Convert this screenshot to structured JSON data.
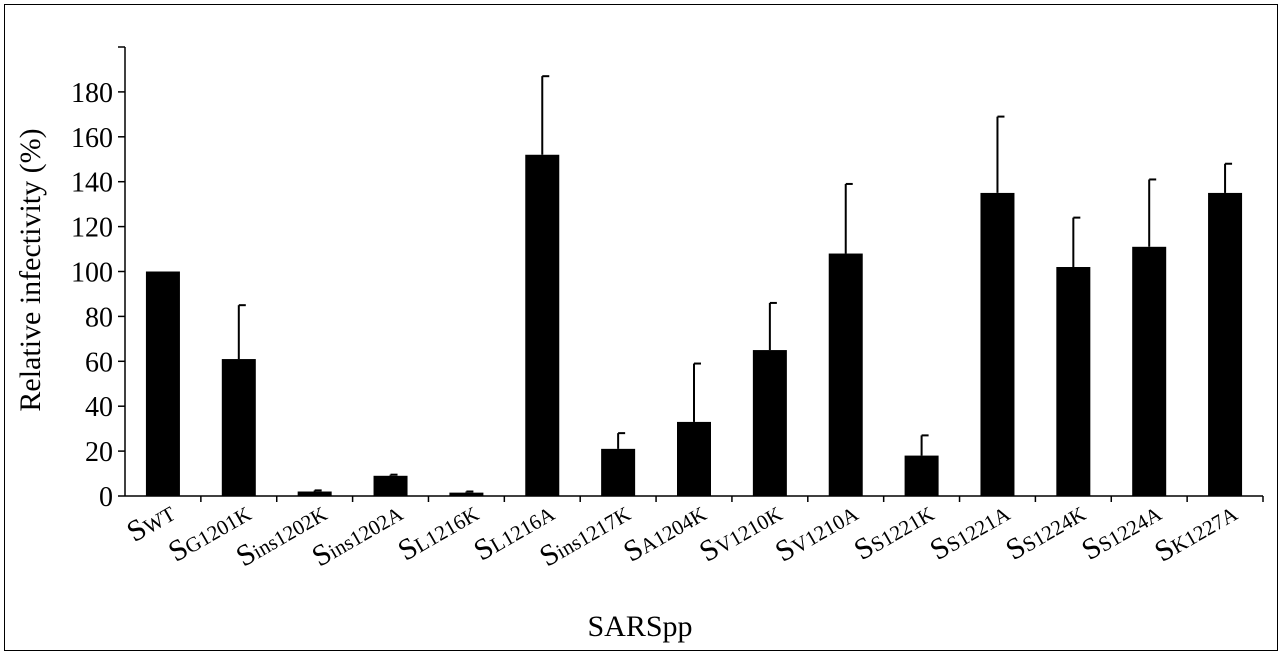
{
  "chart_data": {
    "type": "bar",
    "xlabel": "SARSpp",
    "ylabel": "Relative infectivity (%)",
    "ylim": [
      0,
      200
    ],
    "yticks": [
      0,
      20,
      40,
      60,
      80,
      100,
      120,
      140,
      160,
      180
    ],
    "grid": false,
    "legend": "none",
    "bar_color": "#000000",
    "categories": [
      {
        "main": "S",
        "sub": "WT"
      },
      {
        "main": "S",
        "sub": "G1201K"
      },
      {
        "main": "S",
        "sub": "ins1202K"
      },
      {
        "main": "S",
        "sub": "ins1202A"
      },
      {
        "main": "S",
        "sub": "L1216K"
      },
      {
        "main": "S",
        "sub": "L1216A"
      },
      {
        "main": "S",
        "sub": "ins1217K"
      },
      {
        "main": "S",
        "sub": "A1204K"
      },
      {
        "main": "S",
        "sub": "V1210K"
      },
      {
        "main": "S",
        "sub": "V1210A"
      },
      {
        "main": "S",
        "sub": "S1221K"
      },
      {
        "main": "S",
        "sub": "S1221A"
      },
      {
        "main": "S",
        "sub": "S1224K"
      },
      {
        "main": "S",
        "sub": "S1224A"
      },
      {
        "main": "S",
        "sub": "K1227A"
      }
    ],
    "values": [
      100,
      61,
      2,
      9,
      1.5,
      152,
      21,
      33,
      65,
      108,
      18,
      135,
      102,
      111,
      135
    ],
    "errors": [
      0,
      24,
      0.5,
      0.5,
      0.5,
      35,
      7,
      26,
      21,
      31,
      9,
      34,
      22,
      30,
      13
    ]
  }
}
